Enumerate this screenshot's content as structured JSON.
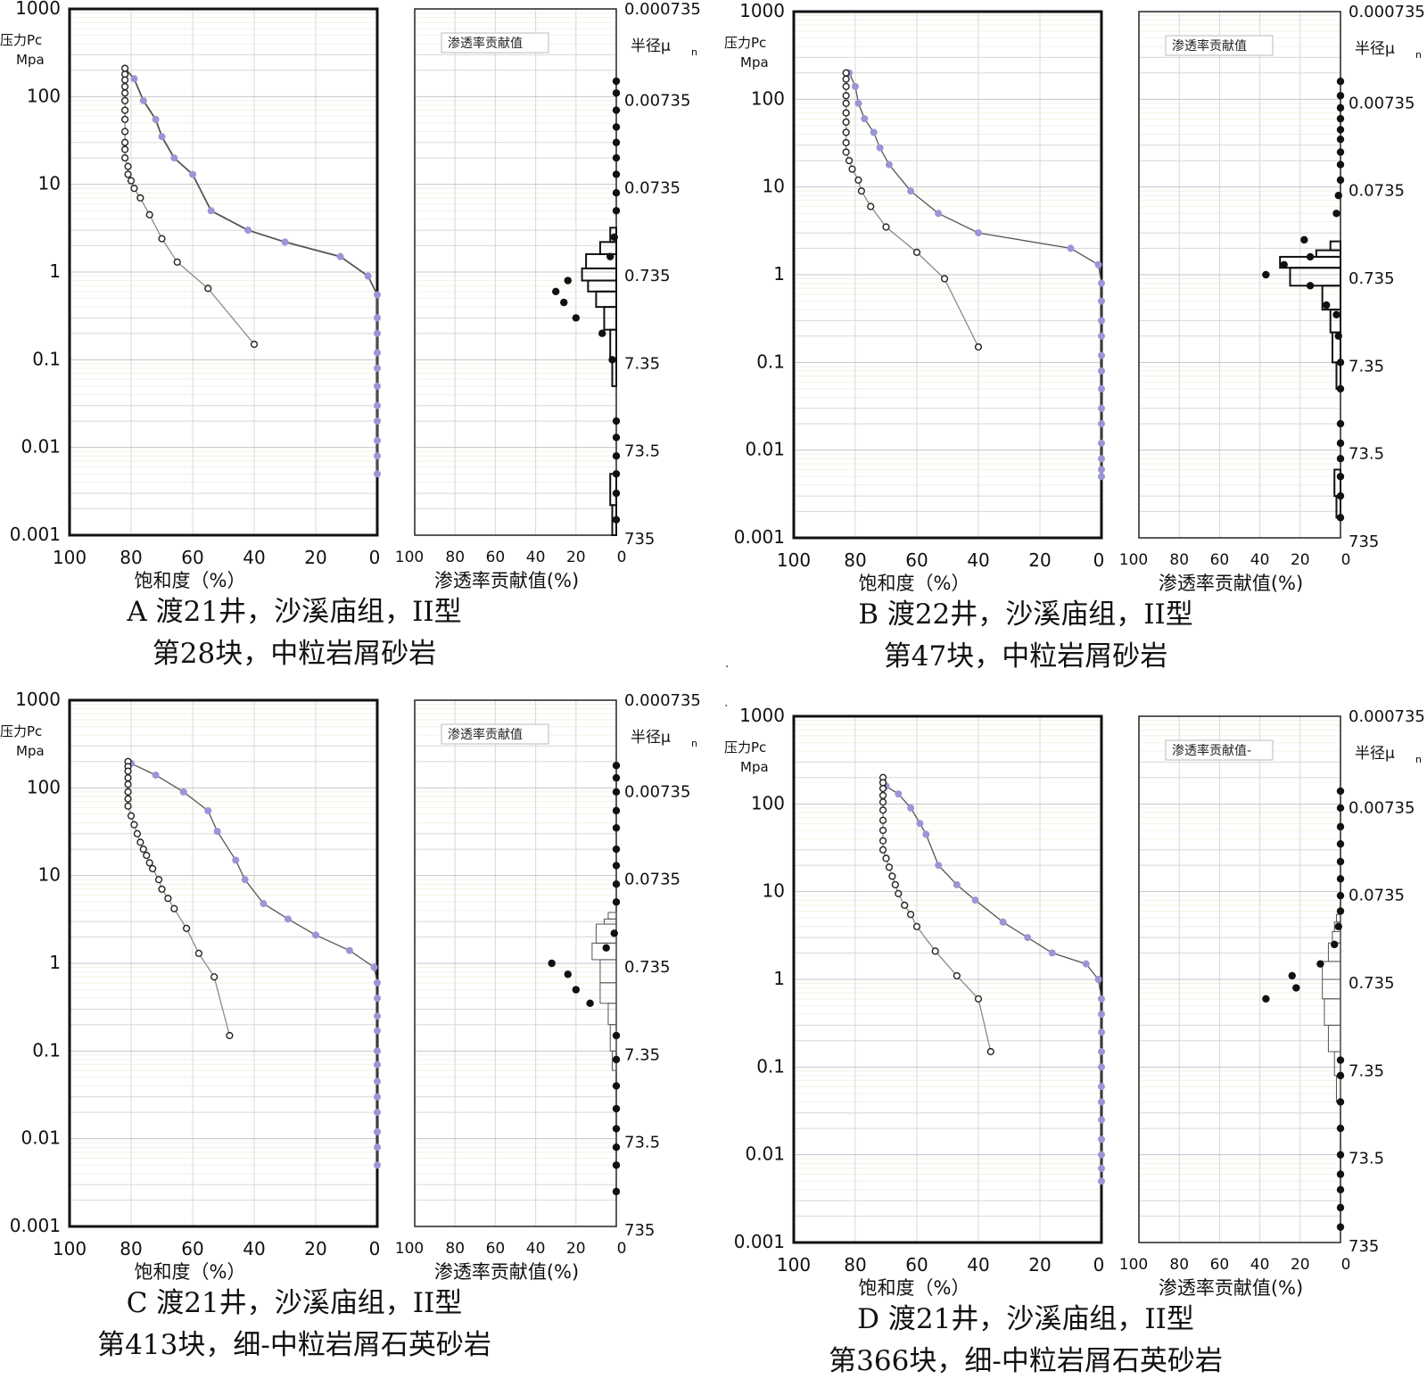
{
  "labels": {
    "pressure_label": "压力Pc",
    "pressure_unit": "Mpa",
    "radius_label": "半径μ",
    "radius_sub": "n",
    "saturation_xlabel": "饱和度（%）",
    "perm_xlabel": "渗透率贡献值(%)",
    "pressure_ticks": [
      "1000",
      "100",
      "10",
      "1",
      "0.1",
      "0.01",
      "0.001"
    ],
    "radius_ticks": [
      "0.000735",
      "0.00735",
      "0.0735",
      "0.735",
      "7.35",
      "73.5",
      "735"
    ],
    "saturation_ticks": [
      "100",
      "80",
      "60",
      "40",
      "20",
      "0"
    ],
    "perm_ticks": [
      "100",
      "80",
      "60",
      "40",
      "20",
      "0"
    ]
  },
  "colors": {
    "intrusion": "#9a96d6",
    "withdrawal": "#222222",
    "line": "#8a8a8a",
    "grid_main": "#d8d8d8",
    "grid_fine": "#eef4e2"
  },
  "chart_data": [
    {
      "type": "line",
      "panel": "A",
      "xlabel": "饱和度（%）",
      "ylabel": "压力Pc Mpa",
      "xlim": [
        100,
        0
      ],
      "ylim": [
        0.001,
        1000
      ],
      "yscale": "log",
      "legend_label": "渗透率贡献值",
      "caption_line1": "A 渡21井，沙溪庙组，II型",
      "caption_line2": "第28块，中粒岩屑砂岩",
      "series": [
        {
          "name": "intrusion",
          "x": [
            82,
            79,
            76,
            72,
            70,
            66,
            60,
            54,
            42,
            30,
            12,
            3,
            0,
            0,
            0,
            0,
            0,
            0,
            0,
            0,
            0,
            0,
            0
          ],
          "y": [
            210,
            160,
            90,
            55,
            35,
            20,
            13,
            5,
            3,
            2.2,
            1.5,
            0.9,
            0.55,
            0.3,
            0.2,
            0.12,
            0.08,
            0.05,
            0.03,
            0.02,
            0.012,
            0.008,
            0.005
          ]
        },
        {
          "name": "withdrawal",
          "x": [
            82,
            82,
            82,
            82,
            82,
            82,
            82,
            82,
            82,
            82,
            82,
            82,
            81,
            81,
            80,
            79,
            77,
            74,
            70,
            65,
            55,
            40
          ],
          "y": [
            210,
            180,
            155,
            130,
            110,
            90,
            70,
            55,
            40,
            30,
            25,
            20,
            16,
            13,
            11,
            9,
            7,
            4.5,
            2.4,
            1.3,
            0.65,
            0.15
          ]
        }
      ],
      "histogram": [
        {
          "y_top": 0.001,
          "y_bottom": 0.0022,
          "value": 2
        },
        {
          "y_top": 0.0022,
          "y_bottom": 0.005,
          "value": 3
        },
        {
          "y_top": 0.05,
          "y_bottom": 0.1,
          "value": 2
        },
        {
          "y_top": 0.1,
          "y_bottom": 0.22,
          "value": 3
        },
        {
          "y_top": 0.22,
          "y_bottom": 0.4,
          "value": 6
        },
        {
          "y_top": 0.4,
          "y_bottom": 0.6,
          "value": 10
        },
        {
          "y_top": 0.6,
          "y_bottom": 0.8,
          "value": 14
        },
        {
          "y_top": 0.8,
          "y_bottom": 1.1,
          "value": 17
        },
        {
          "y_top": 1.1,
          "y_bottom": 1.6,
          "value": 15
        },
        {
          "y_top": 1.6,
          "y_bottom": 2.2,
          "value": 8
        },
        {
          "y_top": 2.2,
          "y_bottom": 3.2,
          "value": 3
        }
      ],
      "perm_points": {
        "x": [
          0,
          0,
          0,
          0,
          0,
          0,
          2,
          7,
          20,
          26,
          30,
          24,
          3,
          1,
          0,
          0,
          0,
          0,
          0,
          0,
          0,
          0,
          0
        ],
        "y": [
          0.0015,
          0.003,
          0.005,
          0.008,
          0.013,
          0.02,
          0.1,
          0.2,
          0.3,
          0.45,
          0.6,
          0.8,
          1.5,
          2.5,
          5,
          8,
          13,
          20,
          30,
          45,
          70,
          110,
          150
        ]
      }
    },
    {
      "type": "line",
      "panel": "B",
      "xlabel": "饱和度（%）",
      "ylabel": "压力Pc Mpa",
      "xlim": [
        100,
        0
      ],
      "ylim": [
        0.001,
        1000
      ],
      "yscale": "log",
      "legend_label": "渗透率贡献值",
      "caption_line1": "B 渡22井，沙溪庙组，II型",
      "caption_line2": "第47块，中粒岩屑砂岩",
      "series": [
        {
          "name": "intrusion",
          "x": [
            82,
            80,
            79,
            77,
            74,
            72,
            69,
            62,
            53,
            40,
            10,
            1,
            0,
            0,
            0,
            0,
            0,
            0,
            0,
            0,
            0,
            0,
            0,
            0,
            0
          ],
          "y": [
            200,
            140,
            90,
            60,
            42,
            28,
            18,
            9,
            5,
            3,
            2,
            1.3,
            0.8,
            0.5,
            0.3,
            0.2,
            0.12,
            0.08,
            0.05,
            0.03,
            0.02,
            0.012,
            0.008,
            0.006,
            0.005
          ]
        },
        {
          "name": "withdrawal",
          "x": [
            83,
            83,
            83,
            83,
            83,
            83,
            83,
            83,
            83,
            83,
            82,
            81,
            79,
            78,
            75,
            70,
            60,
            51,
            40
          ],
          "y": [
            200,
            170,
            140,
            110,
            90,
            70,
            55,
            42,
            32,
            25,
            20,
            16,
            12,
            9,
            6,
            3.5,
            1.8,
            0.9,
            0.15
          ]
        }
      ],
      "histogram": [
        {
          "y_top": 0.0017,
          "y_bottom": 0.003,
          "value": 2
        },
        {
          "y_top": 0.003,
          "y_bottom": 0.006,
          "value": 3
        },
        {
          "y_top": 0.05,
          "y_bottom": 0.1,
          "value": 2
        },
        {
          "y_top": 0.1,
          "y_bottom": 0.22,
          "value": 4
        },
        {
          "y_top": 0.22,
          "y_bottom": 0.4,
          "value": 5
        },
        {
          "y_top": 0.4,
          "y_bottom": 0.75,
          "value": 9
        },
        {
          "y_top": 0.75,
          "y_bottom": 1.2,
          "value": 25
        },
        {
          "y_top": 1.2,
          "y_bottom": 1.6,
          "value": 30
        },
        {
          "y_top": 1.6,
          "y_bottom": 1.9,
          "value": 12
        },
        {
          "y_top": 1.9,
          "y_bottom": 2.4,
          "value": 5
        }
      ],
      "perm_points": {
        "x": [
          0,
          0,
          0,
          0,
          0,
          0,
          0,
          0,
          1,
          2,
          7,
          15,
          37,
          28,
          15,
          18,
          2,
          1,
          0,
          0,
          0,
          0,
          0,
          0,
          0,
          0,
          0
        ],
        "y": [
          0.0017,
          0.003,
          0.005,
          0.008,
          0.012,
          0.02,
          0.05,
          0.1,
          0.2,
          0.35,
          0.45,
          0.75,
          1.0,
          1.3,
          1.6,
          2.5,
          5,
          8,
          12,
          18,
          25,
          35,
          45,
          60,
          80,
          110,
          160
        ]
      }
    },
    {
      "type": "line",
      "panel": "C",
      "xlabel": "饱和度（%）",
      "ylabel": "压力Pc Mpa",
      "xlim": [
        100,
        0
      ],
      "ylim": [
        0.001,
        1000
      ],
      "yscale": "log",
      "legend_label": "渗透率贡献值",
      "caption_line1": "C 渡21井，沙溪庙组，II型",
      "caption_line2": "第413块，细-中粒岩屑石英砂岩",
      "series": [
        {
          "name": "intrusion",
          "x": [
            80,
            72,
            63,
            55,
            52,
            46,
            43,
            37,
            29,
            20,
            9,
            1,
            0,
            0,
            0,
            0,
            0,
            0,
            0,
            0,
            0,
            0,
            0,
            0
          ],
          "y": [
            190,
            140,
            90,
            55,
            32,
            15,
            9,
            4.8,
            3.2,
            2.1,
            1.4,
            0.9,
            0.6,
            0.4,
            0.25,
            0.17,
            0.1,
            0.07,
            0.045,
            0.03,
            0.02,
            0.012,
            0.008,
            0.005
          ]
        },
        {
          "name": "withdrawal",
          "x": [
            81,
            81,
            81,
            81,
            81,
            81,
            81,
            81,
            80,
            79,
            78,
            77,
            76,
            75,
            74,
            73,
            71,
            70,
            68,
            66,
            62,
            58,
            53,
            48
          ],
          "y": [
            200,
            175,
            155,
            130,
            110,
            90,
            75,
            62,
            48,
            38,
            30,
            24,
            20,
            17,
            14,
            12,
            9,
            7,
            5.5,
            4.2,
            2.5,
            1.3,
            0.7,
            0.15
          ]
        }
      ],
      "histogram": [
        {
          "y_top": 0.06,
          "y_bottom": 0.1,
          "value": 2
        },
        {
          "y_top": 0.1,
          "y_bottom": 0.2,
          "value": 3
        },
        {
          "y_top": 0.2,
          "y_bottom": 0.35,
          "value": 4
        },
        {
          "y_top": 0.35,
          "y_bottom": 0.6,
          "value": 8
        },
        {
          "y_top": 0.6,
          "y_bottom": 1.1,
          "value": 8
        },
        {
          "y_top": 1.1,
          "y_bottom": 1.7,
          "value": 12
        },
        {
          "y_top": 1.7,
          "y_bottom": 2.8,
          "value": 10
        },
        {
          "y_top": 2.8,
          "y_bottom": 3.2,
          "value": 6
        },
        {
          "y_top": 3.2,
          "y_bottom": 3.8,
          "value": 4
        }
      ],
      "perm_points": {
        "x": [
          0,
          0,
          0,
          0,
          0,
          0,
          0,
          0,
          13,
          20,
          24,
          32,
          5,
          1,
          0,
          0,
          0,
          0,
          0,
          0,
          0,
          0,
          0
        ],
        "y": [
          0.0025,
          0.005,
          0.008,
          0.013,
          0.022,
          0.04,
          0.08,
          0.15,
          0.35,
          0.5,
          0.75,
          1,
          1.5,
          2.2,
          5,
          8,
          13,
          20,
          35,
          55,
          90,
          130,
          180
        ]
      }
    },
    {
      "type": "line",
      "panel": "D",
      "xlabel": "饱和度（%）",
      "ylabel": "压力Pc Mpa",
      "xlim": [
        100,
        0
      ],
      "ylim": [
        0.001,
        1000
      ],
      "yscale": "log",
      "legend_label": "渗透率贡献值-",
      "caption_line1": "D 渡21井，沙溪庙组，II型",
      "caption_line2": "第366块，细-中粒岩屑石英砂岩",
      "series": [
        {
          "name": "intrusion",
          "x": [
            70,
            66,
            62,
            59,
            57,
            53,
            47,
            41,
            32,
            24,
            16,
            5,
            1,
            0,
            0,
            0,
            0,
            0,
            0,
            0,
            0,
            0,
            0,
            0,
            0
          ],
          "y": [
            160,
            130,
            90,
            60,
            45,
            20,
            12,
            8,
            4.5,
            3,
            2,
            1.5,
            1,
            0.6,
            0.4,
            0.25,
            0.15,
            0.1,
            0.06,
            0.04,
            0.025,
            0.015,
            0.01,
            0.007,
            0.005
          ]
        },
        {
          "name": "withdrawal",
          "x": [
            71,
            71,
            71,
            71,
            71,
            71,
            71,
            71,
            71,
            71,
            70,
            69,
            68,
            67,
            66,
            64,
            62,
            60,
            54,
            47,
            40,
            36
          ],
          "y": [
            200,
            175,
            150,
            125,
            105,
            85,
            65,
            50,
            38,
            30,
            24,
            19,
            15,
            12,
            9.5,
            7,
            5.5,
            4,
            2.1,
            1.1,
            0.6,
            0.15
          ]
        }
      ],
      "histogram": [
        {
          "y_top": 0.04,
          "y_bottom": 0.08,
          "value": 2
        },
        {
          "y_top": 0.08,
          "y_bottom": 0.15,
          "value": 3
        },
        {
          "y_top": 0.15,
          "y_bottom": 0.3,
          "value": 6
        },
        {
          "y_top": 0.3,
          "y_bottom": 0.6,
          "value": 8
        },
        {
          "y_top": 0.6,
          "y_bottom": 1.0,
          "value": 9
        },
        {
          "y_top": 1.0,
          "y_bottom": 1.6,
          "value": 9
        },
        {
          "y_top": 1.6,
          "y_bottom": 2.6,
          "value": 6
        },
        {
          "y_top": 2.6,
          "y_bottom": 3.5,
          "value": 4
        },
        {
          "y_top": 3.5,
          "y_bottom": 4.5,
          "value": 3
        },
        {
          "y_top": 4.5,
          "y_bottom": 5.5,
          "value": 2
        }
      ],
      "perm_points": {
        "x": [
          0,
          0,
          0,
          0,
          0,
          0,
          0,
          0,
          0,
          37,
          22,
          24,
          10,
          3,
          1,
          0,
          0,
          0,
          0,
          0,
          0,
          0,
          0
        ],
        "y": [
          0.0015,
          0.0025,
          0.004,
          0.006,
          0.01,
          0.02,
          0.04,
          0.08,
          0.12,
          0.6,
          0.8,
          1.1,
          1.5,
          2.5,
          4,
          6,
          9,
          14,
          22,
          35,
          55,
          90,
          140
        ]
      }
    }
  ]
}
